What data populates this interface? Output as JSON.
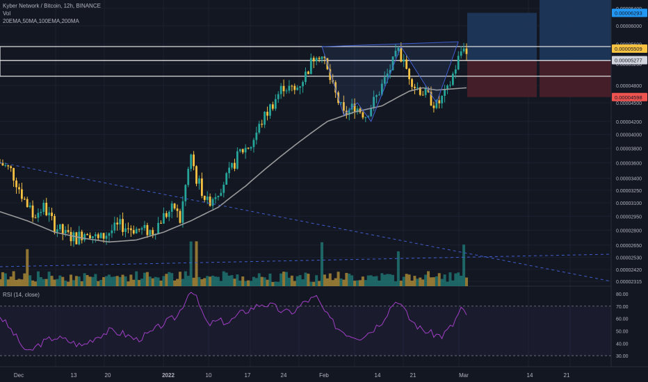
{
  "header": {
    "symbol_line": "Kyber Network / Bitcoin, 12h, BINANCE",
    "vol_label": "Vol",
    "ma_label": "20EMA,50MA,100EMA,200MA",
    "rsi_label": "RSI (14, close)"
  },
  "colors": {
    "background": "#131722",
    "up": "#26a69a",
    "down": "#f7c242",
    "ma": "#9b9b9b",
    "pattern": "#3f5fd0",
    "rsi_line": "#a23fc8",
    "target_zone": "#1e3a5f",
    "stop_zone": "#4a1f2a",
    "axis_text": "#b2b5be"
  },
  "price_axis": {
    "ticks": [
      "0.00006400",
      "0.00006000",
      "0.00005600",
      "0.00005200",
      "0.00004800",
      "0.00004500",
      "0.00004200",
      "0.00004000",
      "0.00003800",
      "0.00003600",
      "0.00003400",
      "0.00003250",
      "0.00003100",
      "0.00002950",
      "0.00002800",
      "0.00002650",
      "0.00002530",
      "0.00002420",
      "0.00002315"
    ],
    "tags": [
      {
        "label": "0.00006293",
        "color": "#2196f3"
      },
      {
        "label": "0.00005509",
        "color": "#f7c242"
      },
      {
        "label": "0.00005277",
        "color": "#d1d4dc"
      },
      {
        "label": "0.00004598",
        "color": "#ef5350"
      }
    ]
  },
  "rsi_axis": {
    "ticks": [
      "80.00",
      "70.00",
      "60.00",
      "50.00",
      "40.00",
      "30.00"
    ]
  },
  "time_axis": {
    "ticks": [
      "Dec",
      "13",
      "20",
      "2022",
      "10",
      "17",
      "24",
      "Feb",
      "14",
      "21",
      "Mar",
      "14",
      "21"
    ]
  },
  "chart_data": {
    "type": "candlestick",
    "title": "Kyber Network / Bitcoin, 12h, BINANCE",
    "symbol": "KNC/BTC",
    "interval": "12h",
    "exchange": "BINANCE",
    "indicators": [
      "20EMA",
      "50MA",
      "100EMA",
      "200MA",
      "Vol",
      "RSI (14, close)"
    ],
    "price_range": [
      2.315e-05,
      6.4e-05
    ],
    "price_scale": "log",
    "levels": {
      "target_high": 6.293e-05,
      "last_price": 5.509e-05,
      "entry": 5.277e-05,
      "stop": 4.598e-05
    },
    "close_path": [
      {
        "t": 0,
        "p": 3.6e-05
      },
      {
        "t": 4,
        "p": 3.5e-05
      },
      {
        "t": 8,
        "p": 3.2e-05
      },
      {
        "t": 12,
        "p": 2.95e-05
      },
      {
        "t": 16,
        "p": 3.05e-05
      },
      {
        "t": 20,
        "p": 2.85e-05
      },
      {
        "t": 24,
        "p": 2.75e-05
      },
      {
        "t": 28,
        "p": 2.72e-05
      },
      {
        "t": 32,
        "p": 2.8e-05
      },
      {
        "t": 36,
        "p": 2.7e-05
      },
      {
        "t": 40,
        "p": 2.78e-05
      },
      {
        "t": 44,
        "p": 2.85e-05
      },
      {
        "t": 48,
        "p": 2.82e-05
      },
      {
        "t": 52,
        "p": 2.8e-05
      },
      {
        "t": 56,
        "p": 2.79e-05
      },
      {
        "t": 60,
        "p": 2.95e-05
      },
      {
        "t": 64,
        "p": 3.05e-05
      },
      {
        "t": 66,
        "p": 2.9e-05
      },
      {
        "t": 70,
        "p": 3.7e-05
      },
      {
        "t": 72,
        "p": 3.4e-05
      },
      {
        "t": 76,
        "p": 3.1e-05
      },
      {
        "t": 80,
        "p": 3.25e-05
      },
      {
        "t": 84,
        "p": 3.45e-05
      },
      {
        "t": 88,
        "p": 3.75e-05
      },
      {
        "t": 92,
        "p": 3.85e-05
      },
      {
        "t": 96,
        "p": 4.2e-05
      },
      {
        "t": 100,
        "p": 4.5e-05
      },
      {
        "t": 104,
        "p": 4.8e-05
      },
      {
        "t": 108,
        "p": 4.7e-05
      },
      {
        "t": 112,
        "p": 5e-05
      },
      {
        "t": 116,
        "p": 5.45e-05
      },
      {
        "t": 118,
        "p": 5.35e-05
      },
      {
        "t": 122,
        "p": 4.75e-05
      },
      {
        "t": 126,
        "p": 4.3e-05
      },
      {
        "t": 130,
        "p": 4.45e-05
      },
      {
        "t": 134,
        "p": 4.3e-05
      },
      {
        "t": 138,
        "p": 4.6e-05
      },
      {
        "t": 142,
        "p": 5e-05
      },
      {
        "t": 146,
        "p": 5.45e-05
      },
      {
        "t": 148,
        "p": 5.2e-05
      },
      {
        "t": 152,
        "p": 4.8e-05
      },
      {
        "t": 156,
        "p": 4.65e-05
      },
      {
        "t": 160,
        "p": 4.45e-05
      },
      {
        "t": 164,
        "p": 4.7e-05
      },
      {
        "t": 168,
        "p": 5.3e-05
      },
      {
        "t": 170,
        "p": 5.6e-05
      },
      {
        "t": 171,
        "p": 5.51e-05
      }
    ],
    "ma_path": [
      {
        "t": 0,
        "p": 3e-05
      },
      {
        "t": 10,
        "p": 2.9e-05
      },
      {
        "t": 20,
        "p": 2.78e-05
      },
      {
        "t": 30,
        "p": 2.72e-05
      },
      {
        "t": 40,
        "p": 2.68e-05
      },
      {
        "t": 50,
        "p": 2.7e-05
      },
      {
        "t": 60,
        "p": 2.78e-05
      },
      {
        "t": 70,
        "p": 2.9e-05
      },
      {
        "t": 80,
        "p": 3.05e-05
      },
      {
        "t": 90,
        "p": 3.3e-05
      },
      {
        "t": 100,
        "p": 3.6e-05
      },
      {
        "t": 110,
        "p": 3.9e-05
      },
      {
        "t": 120,
        "p": 4.2e-05
      },
      {
        "t": 130,
        "p": 4.35e-05
      },
      {
        "t": 140,
        "p": 4.45e-05
      },
      {
        "t": 150,
        "p": 4.7e-05
      },
      {
        "t": 155,
        "p": 4.76e-05
      },
      {
        "t": 160,
        "p": 4.72e-05
      },
      {
        "t": 171,
        "p": 4.76e-05
      }
    ],
    "rsi": [
      {
        "t": 0,
        "v": 62
      },
      {
        "t": 5,
        "v": 48
      },
      {
        "t": 10,
        "v": 32
      },
      {
        "t": 15,
        "v": 40
      },
      {
        "t": 20,
        "v": 45
      },
      {
        "t": 25,
        "v": 42
      },
      {
        "t": 30,
        "v": 38
      },
      {
        "t": 35,
        "v": 45
      },
      {
        "t": 40,
        "v": 50
      },
      {
        "t": 45,
        "v": 48
      },
      {
        "t": 50,
        "v": 43
      },
      {
        "t": 55,
        "v": 48
      },
      {
        "t": 60,
        "v": 56
      },
      {
        "t": 65,
        "v": 62
      },
      {
        "t": 70,
        "v": 84
      },
      {
        "t": 72,
        "v": 76
      },
      {
        "t": 76,
        "v": 55
      },
      {
        "t": 80,
        "v": 58
      },
      {
        "t": 84,
        "v": 57
      },
      {
        "t": 88,
        "v": 64
      },
      {
        "t": 92,
        "v": 68
      },
      {
        "t": 96,
        "v": 72
      },
      {
        "t": 100,
        "v": 70
      },
      {
        "t": 104,
        "v": 65
      },
      {
        "t": 108,
        "v": 66
      },
      {
        "t": 112,
        "v": 74
      },
      {
        "t": 116,
        "v": 77
      },
      {
        "t": 120,
        "v": 62
      },
      {
        "t": 124,
        "v": 52
      },
      {
        "t": 128,
        "v": 47
      },
      {
        "t": 132,
        "v": 45
      },
      {
        "t": 136,
        "v": 50
      },
      {
        "t": 140,
        "v": 58
      },
      {
        "t": 144,
        "v": 72
      },
      {
        "t": 146,
        "v": 75
      },
      {
        "t": 150,
        "v": 60
      },
      {
        "t": 154,
        "v": 52
      },
      {
        "t": 158,
        "v": 48
      },
      {
        "t": 162,
        "v": 46
      },
      {
        "t": 166,
        "v": 55
      },
      {
        "t": 169,
        "v": 68
      },
      {
        "t": 171,
        "v": 62
      }
    ],
    "pattern": [
      {
        "t": 118,
        "p": 5.55e-05
      },
      {
        "t": 126,
        "p": 4.3e-05
      },
      {
        "t": 131,
        "p": 4.5e-05
      },
      {
        "t": 136,
        "p": 4.2e-05
      },
      {
        "t": 147,
        "p": 5.55e-05
      },
      {
        "t": 160,
        "p": 4.5e-05
      },
      {
        "t": 168,
        "p": 5.65e-05
      }
    ],
    "pattern_neckline": [
      {
        "t": 118,
        "p": 5.55e-05
      },
      {
        "t": 168,
        "p": 5.65e-05
      }
    ]
  }
}
